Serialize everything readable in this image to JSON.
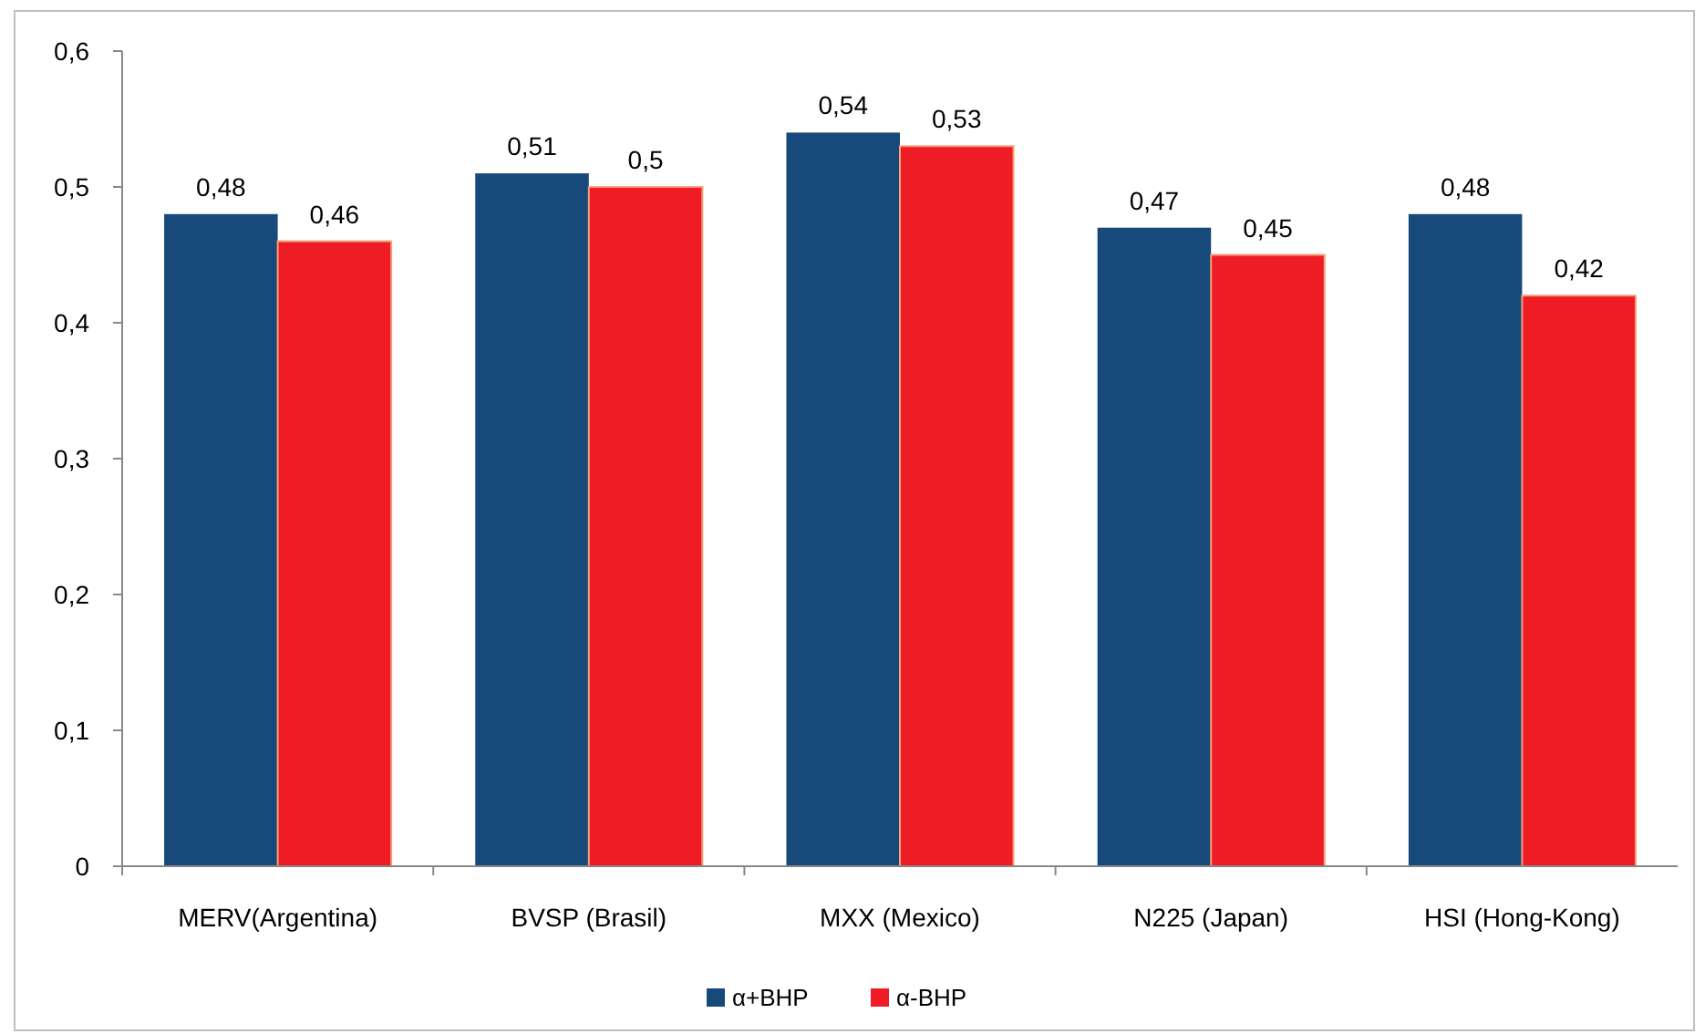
{
  "chart_data": {
    "type": "bar",
    "categories": [
      "MERV(Argentina)",
      "BVSP (Brasil)",
      "MXX (Mexico)",
      "N225 (Japan)",
      "HSI (Hong-Kong)"
    ],
    "series": [
      {
        "name": "α+BHP",
        "color": "#17497a",
        "values": [
          0.48,
          0.51,
          0.54,
          0.47,
          0.48
        ],
        "value_labels": [
          "0,48",
          "0,51",
          "0,54",
          "0,47",
          "0,48"
        ]
      },
      {
        "name": "α-BHP",
        "color": "#ee1c24",
        "values": [
          0.46,
          0.5,
          0.53,
          0.45,
          0.42
        ],
        "value_labels": [
          "0,46",
          "0,5",
          "0,53",
          "0,45",
          "0,42"
        ]
      }
    ],
    "ylim": [
      0,
      0.6
    ],
    "yticks": [
      0,
      {
        "value": 0.1,
        "label": "0,1"
      },
      {
        "value": 0.2,
        "label": "0,2"
      },
      {
        "value": 0.3,
        "label": "0,3"
      },
      {
        "value": 0.4,
        "label": "0,4"
      },
      {
        "value": 0.5,
        "label": "0,5"
      },
      {
        "value": 0.6,
        "label": "0,6"
      }
    ],
    "grid": false,
    "legend": "bottom"
  }
}
